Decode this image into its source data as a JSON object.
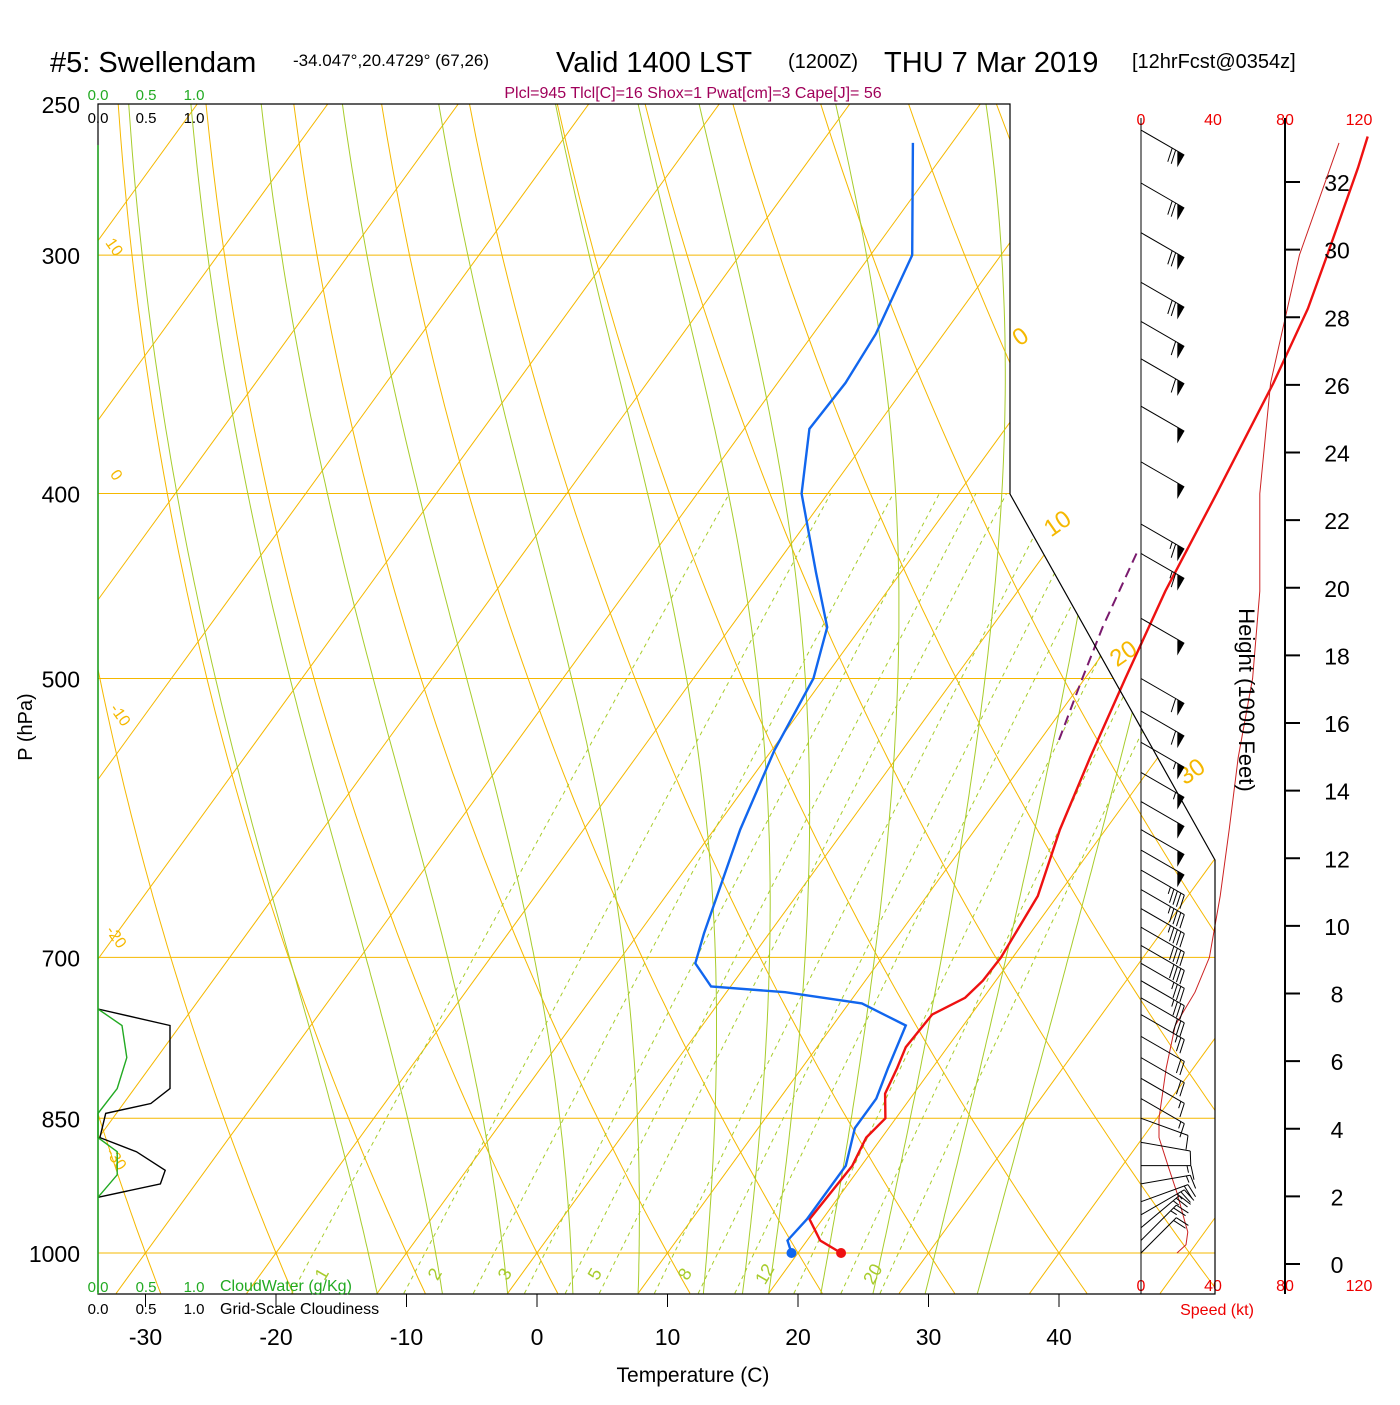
{
  "header": {
    "station": "#5: Swellendam",
    "coords": "-34.047°,20.4729° (67,26)",
    "valid": "Valid 1400 LST",
    "utc": "(1200Z)",
    "date": "THU 7 Mar 2019",
    "forecast": "[12hrFcst@0354z]",
    "params": "Plcl=945 Tlcl[C]=16 Shox=1 Pwat[cm]=3 Cape[J]= 56"
  },
  "colors": {
    "isotherm": "#f5b800",
    "dry_adiabat": "#f5b800",
    "moist_adiabat": "#a8cc2c",
    "mixing_ratio": "#a8cc2c",
    "temperature": "#ee1111",
    "dewpoint": "#1166ee",
    "parcel": "#7a1a6e",
    "cloud_water": "#22aa22",
    "wind_speed": "#cc2222",
    "label_red": "#ee0000",
    "title_purple": "#a0005a"
  },
  "chart_data": {
    "type": "line",
    "title": "Skew-T log-P sounding",
    "xlabel": "Temperature (C)",
    "ylabel": "P (hPa)",
    "x_ticks": [
      "-30",
      "-20",
      "-10",
      "0",
      "10",
      "20",
      "30",
      "40"
    ],
    "x_tick_values": [
      -30,
      -20,
      -10,
      0,
      10,
      20,
      30,
      40
    ],
    "pressure_levels": [
      250,
      300,
      400,
      500,
      700,
      850,
      1000
    ],
    "pressure_labels": [
      "250",
      "300",
      "400",
      "500",
      "700",
      "850",
      "1000"
    ],
    "pressure_range": [
      250,
      1050
    ],
    "height_axis": {
      "label": "Height (1000 Feet)",
      "ticks": [
        "0",
        "2",
        "4",
        "6",
        "8",
        "10",
        "12",
        "14",
        "16",
        "18",
        "20",
        "22",
        "24",
        "26",
        "28",
        "30",
        "32"
      ],
      "values": [
        0,
        2,
        4,
        6,
        8,
        10,
        12,
        14,
        16,
        18,
        20,
        22,
        24,
        26,
        28,
        30,
        32
      ]
    },
    "wind_speed_axis": {
      "label": "Speed (kt)",
      "ticks": [
        "0",
        "40",
        "80",
        "120"
      ],
      "values": [
        0,
        40,
        80,
        120
      ]
    },
    "isotherm_labels": [
      "0",
      "10",
      "20",
      "30"
    ],
    "dry_adiabat_labels": [
      "10",
      "0",
      "-10",
      "-20",
      "-30"
    ],
    "mixing_ratio_labels": [
      "1",
      "2",
      "3",
      "5",
      "8",
      "12",
      "20"
    ],
    "temperature_profile": [
      [
        1000,
        23.3
      ],
      [
        985,
        21.0
      ],
      [
        960,
        19.0
      ],
      [
        900,
        19.3
      ],
      [
        870,
        18.8
      ],
      [
        850,
        19.2
      ],
      [
        825,
        17.8
      ],
      [
        800,
        17.3
      ],
      [
        780,
        16.8
      ],
      [
        750,
        17.0
      ],
      [
        735,
        18.6
      ],
      [
        720,
        19.0
      ],
      [
        700,
        19.1
      ],
      [
        650,
        18.5
      ],
      [
        600,
        16.5
      ],
      [
        550,
        14.8
      ],
      [
        500,
        13.1
      ],
      [
        450,
        11.3
      ],
      [
        400,
        9.8
      ],
      [
        350,
        8.0
      ],
      [
        320,
        6.5
      ],
      [
        300,
        5.0
      ],
      [
        270,
        2.5
      ],
      [
        260,
        1.5
      ]
    ],
    "dewpoint_profile": [
      [
        1000,
        19.5
      ],
      [
        985,
        18.5
      ],
      [
        960,
        18.8
      ],
      [
        900,
        18.8
      ],
      [
        860,
        17.4
      ],
      [
        830,
        17.4
      ],
      [
        800,
        16.6
      ],
      [
        760,
        15.6
      ],
      [
        740,
        11.0
      ],
      [
        730,
        4.5
      ],
      [
        725,
        -1.5
      ],
      [
        705,
        -4.0
      ],
      [
        680,
        -5.0
      ],
      [
        600,
        -8.0
      ],
      [
        545,
        -9.8
      ],
      [
        500,
        -10.8
      ],
      [
        470,
        -12.6
      ],
      [
        440,
        -16.5
      ],
      [
        400,
        -22.0
      ],
      [
        370,
        -25.0
      ],
      [
        350,
        -24.8
      ],
      [
        330,
        -25.2
      ],
      [
        300,
        -26.8
      ],
      [
        262,
        -33.0
      ]
    ],
    "parcel_profile": [
      [
        430,
        7.0
      ],
      [
        470,
        8.5
      ],
      [
        500,
        9.8
      ],
      [
        540,
        11.5
      ]
    ],
    "surface_points": {
      "temperature": 23.3,
      "dewpoint": 19.5,
      "pressure": 1000
    },
    "cloud_water": {
      "label": "CloudWater (g/Kg)",
      "ticks": [
        "0.0",
        "0.5",
        "1.0"
      ],
      "values": [
        0.0,
        0.5,
        1.0
      ],
      "profile": [
        [
          745,
          0.0
        ],
        [
          760,
          0.25
        ],
        [
          790,
          0.3
        ],
        [
          820,
          0.2
        ],
        [
          845,
          0.0
        ],
        [
          870,
          0.0
        ],
        [
          885,
          0.2
        ],
        [
          910,
          0.2
        ],
        [
          935,
          0.0
        ]
      ]
    },
    "cloudiness": {
      "label": "Grid-Scale Cloudiness",
      "ticks": [
        "0.0",
        "0.5",
        "1.0"
      ],
      "values": [
        0.0,
        0.5,
        1.0
      ],
      "profile": [
        [
          745,
          0.0
        ],
        [
          760,
          0.75
        ],
        [
          820,
          0.75
        ],
        [
          835,
          0.55
        ],
        [
          845,
          0.08
        ],
        [
          870,
          0.02
        ],
        [
          885,
          0.4
        ],
        [
          905,
          0.7
        ],
        [
          920,
          0.65
        ],
        [
          935,
          0.0
        ]
      ]
    },
    "wind_speed_profile": [
      [
        1000,
        20.0
      ],
      [
        990,
        25.0
      ],
      [
        975,
        26.0
      ],
      [
        960,
        24.0
      ],
      [
        930,
        20.0
      ],
      [
        900,
        15.0
      ],
      [
        870,
        10.0
      ],
      [
        850,
        10.0
      ],
      [
        800,
        14.0
      ],
      [
        760,
        19.0
      ],
      [
        730,
        30.0
      ],
      [
        700,
        38.0
      ],
      [
        650,
        44.0
      ],
      [
        600,
        49.0
      ],
      [
        550,
        54.0
      ],
      [
        500,
        62.0
      ],
      [
        450,
        66.0
      ],
      [
        400,
        66.0
      ],
      [
        350,
        72.0
      ],
      [
        300,
        88.0
      ],
      [
        262,
        110.0
      ]
    ],
    "wind_barbs": [
      {
        "p": 1000,
        "dir": 225,
        "spd": 20
      },
      {
        "p": 985,
        "dir": 225,
        "spd": 25
      },
      {
        "p": 970,
        "dir": 230,
        "spd": 25
      },
      {
        "p": 955,
        "dir": 240,
        "spd": 25
      },
      {
        "p": 940,
        "dir": 250,
        "spd": 20
      },
      {
        "p": 920,
        "dir": 260,
        "spd": 15
      },
      {
        "p": 900,
        "dir": 270,
        "spd": 15
      },
      {
        "p": 875,
        "dir": 280,
        "spd": 10
      },
      {
        "p": 850,
        "dir": 290,
        "spd": 10
      },
      {
        "p": 830,
        "dir": 300,
        "spd": 15
      },
      {
        "p": 810,
        "dir": 300,
        "spd": 15
      },
      {
        "p": 790,
        "dir": 300,
        "spd": 20
      },
      {
        "p": 770,
        "dir": 300,
        "spd": 20
      },
      {
        "p": 750,
        "dir": 300,
        "spd": 25
      },
      {
        "p": 735,
        "dir": 300,
        "spd": 30
      },
      {
        "p": 720,
        "dir": 300,
        "spd": 35
      },
      {
        "p": 705,
        "dir": 300,
        "spd": 35
      },
      {
        "p": 690,
        "dir": 300,
        "spd": 40
      },
      {
        "p": 675,
        "dir": 300,
        "spd": 40
      },
      {
        "p": 660,
        "dir": 300,
        "spd": 45
      },
      {
        "p": 645,
        "dir": 300,
        "spd": 45
      },
      {
        "p": 630,
        "dir": 300,
        "spd": 45
      },
      {
        "p": 615,
        "dir": 300,
        "spd": 50
      },
      {
        "p": 600,
        "dir": 300,
        "spd": 50
      },
      {
        "p": 580,
        "dir": 300,
        "spd": 50
      },
      {
        "p": 560,
        "dir": 300,
        "spd": 55
      },
      {
        "p": 540,
        "dir": 300,
        "spd": 55
      },
      {
        "p": 520,
        "dir": 300,
        "spd": 60
      },
      {
        "p": 500,
        "dir": 300,
        "spd": 60
      },
      {
        "p": 465,
        "dir": 300,
        "spd": 50
      },
      {
        "p": 430,
        "dir": 300,
        "spd": 65
      },
      {
        "p": 415,
        "dir": 300,
        "spd": 65
      },
      {
        "p": 385,
        "dir": 300,
        "spd": 50
      },
      {
        "p": 360,
        "dir": 300,
        "spd": 50
      },
      {
        "p": 340,
        "dir": 300,
        "spd": 60
      },
      {
        "p": 325,
        "dir": 300,
        "spd": 60
      },
      {
        "p": 310,
        "dir": 300,
        "spd": 70
      },
      {
        "p": 292,
        "dir": 300,
        "spd": 70
      },
      {
        "p": 275,
        "dir": 300,
        "spd": 70
      },
      {
        "p": 258,
        "dir": 300,
        "spd": 70
      }
    ]
  }
}
